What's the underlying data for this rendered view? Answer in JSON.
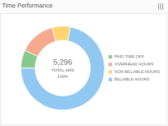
{
  "chart_data": {
    "type": "doughnut",
    "title": "Time Performance",
    "categories": [
      "PAID TIME OFF",
      "OVERHEAD HOURS",
      "NON BILLABLE HOURS",
      "BILLABLE HOURS"
    ],
    "values": [
      370,
      740,
      370,
      3816
    ],
    "colors": [
      "#86c98a",
      "#f5a98e",
      "#fdd470",
      "#90c8f2"
    ],
    "legend": "right",
    "center_labels": [
      "5,296",
      "TOTAL HRS",
      "100%"
    ]
  }
}
